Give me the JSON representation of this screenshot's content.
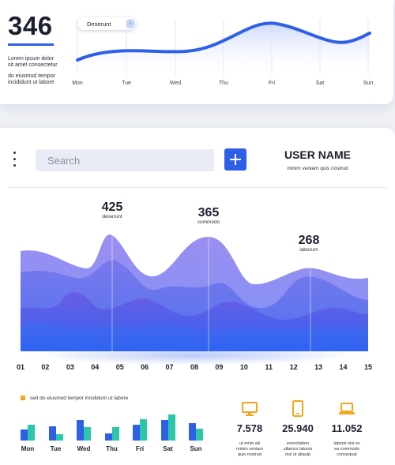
{
  "top_card": {
    "big_number": "346",
    "desc_line1": "Lorem ipsum dolor",
    "desc_line2": "sit amet consectetur",
    "desc_line3": "do eiusmod tempor",
    "desc_line4": "incididunt ut labore",
    "pill_label": "Deserunt",
    "pill_icon": "chevron-right-icon",
    "days": [
      "Mon",
      "Tue",
      "Wed",
      "Thu",
      "Fri",
      "Sat",
      "Sun"
    ]
  },
  "toolbar": {
    "menu_icon": "kebab-menu-icon",
    "search_placeholder": "Search",
    "add_icon": "plus-icon",
    "user_name": "USER NAME",
    "user_subtitle": "minim veniam quis nostrud"
  },
  "area_chart": {
    "peaks": [
      {
        "value": "425",
        "label": "deserunt"
      },
      {
        "value": "365",
        "label": "commodo"
      },
      {
        "value": "268",
        "label": "laborum"
      }
    ],
    "x_labels": [
      "01",
      "02",
      "03",
      "04",
      "05",
      "06",
      "07",
      "08",
      "09",
      "10",
      "11",
      "12",
      "13",
      "14",
      "15"
    ]
  },
  "bar_section": {
    "legend_text": "sed do eiusmod tempor incididunt ut labore",
    "legend_color": "#f2a81d",
    "days": [
      "Mon",
      "Tue",
      "Wed",
      "Thu",
      "Fri",
      "Sat",
      "Sun"
    ],
    "series_a_color": "#2f5fe8",
    "series_b_color": "#2cc6a8"
  },
  "stats": [
    {
      "icon": "monitor-icon",
      "value": "7.578",
      "line1": "ut enim ad",
      "line2": "minim veniam",
      "line3": "quis nostrud"
    },
    {
      "icon": "tablet-icon",
      "value": "25.940",
      "line1": "exercitation",
      "line2": "ullamco laboris",
      "line3": "nisi ut aliquip"
    },
    {
      "icon": "laptop-icon",
      "value": "11.052",
      "line1": "laboris nisi ex",
      "line2": "ea commodo",
      "line3": "consequat"
    }
  ],
  "colors": {
    "accent": "#2f5fe8",
    "teal": "#2cc6a8",
    "icon_orange": "#f2a81d"
  }
}
